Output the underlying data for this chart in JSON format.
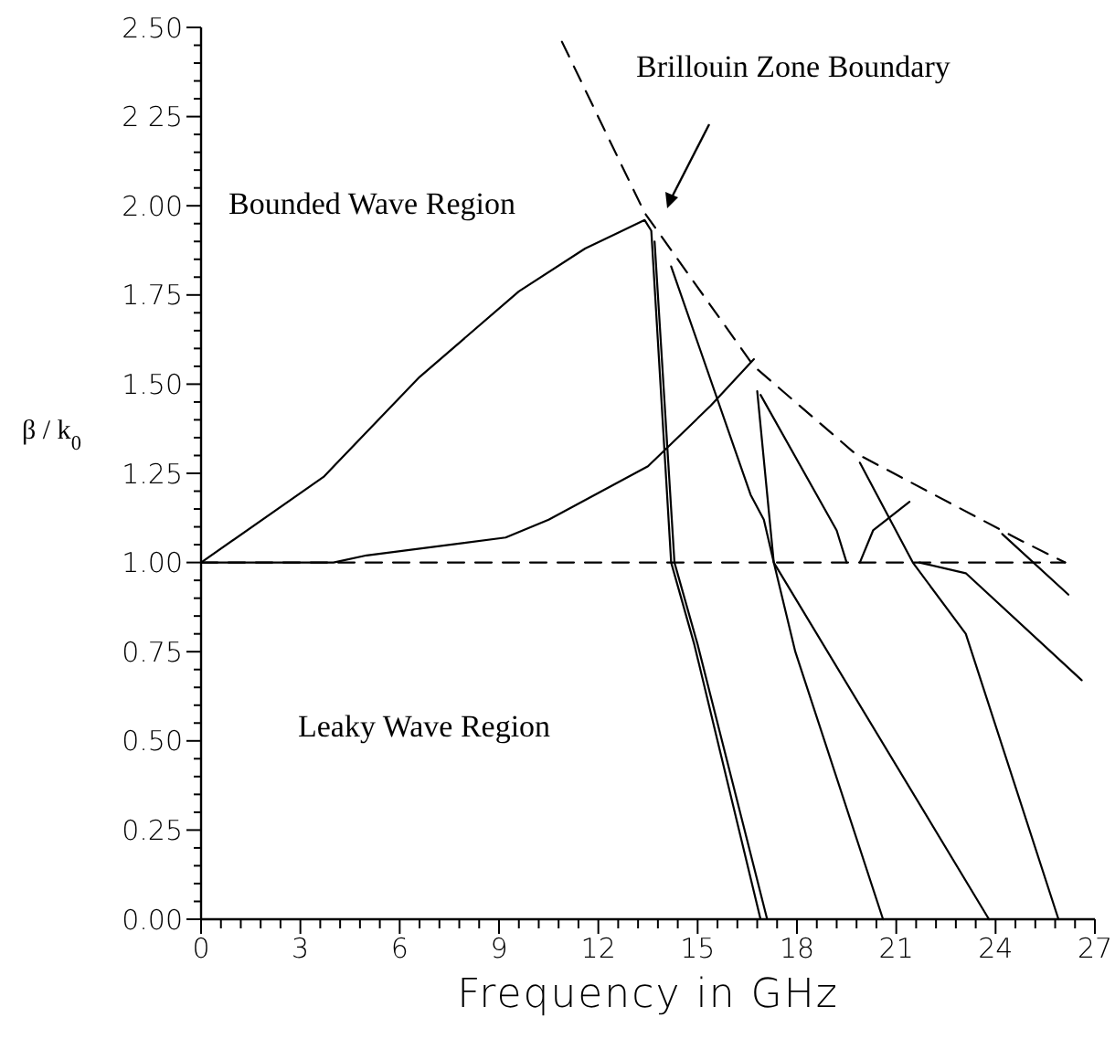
{
  "chart_data": {
    "type": "line",
    "xlabel": "Frequency in GHz",
    "ylabel": "β / k$_{0}$",
    "xlim": [
      0,
      27
    ],
    "ylim": [
      0,
      2.5
    ],
    "xticks": [
      0,
      {
        "value": 0.6,
        "label": null
      },
      {
        "value": 1.2,
        "label": null
      },
      {
        "value": 1.8,
        "label": null
      },
      {
        "value": 2.4,
        "label": null
      },
      3,
      {
        "value": 3.6,
        "label": null
      },
      {
        "value": 4.2,
        "label": null
      },
      {
        "value": 4.8,
        "label": null
      },
      {
        "value": 5.4,
        "label": null
      },
      6,
      {
        "value": 6.6,
        "label": null
      },
      {
        "value": 7.2,
        "label": null
      },
      {
        "value": 7.8,
        "label": null
      },
      {
        "value": 8.4,
        "label": null
      },
      9,
      {
        "value": 9.6,
        "label": null
      },
      {
        "value": 10.2,
        "label": null
      },
      {
        "value": 10.8,
        "label": null
      },
      {
        "value": 11.4,
        "label": null
      },
      12,
      {
        "value": 12.6,
        "label": null
      },
      {
        "value": 13.2,
        "label": null
      },
      {
        "value": 13.8,
        "label": null
      },
      {
        "value": 14.4,
        "label": null
      },
      15,
      {
        "value": 15.6,
        "label": null
      },
      {
        "value": 16.2,
        "label": null
      },
      {
        "value": 16.8,
        "label": null
      },
      {
        "value": 17.4,
        "label": null
      },
      18,
      {
        "value": 18.6,
        "label": null
      },
      {
        "value": 19.2,
        "label": null
      },
      {
        "value": 19.8,
        "label": null
      },
      {
        "value": 20.4,
        "label": null
      },
      21,
      {
        "value": 21.6,
        "label": null
      },
      {
        "value": 22.2,
        "label": null
      },
      {
        "value": 22.8,
        "label": null
      },
      {
        "value": 23.4,
        "label": null
      },
      24,
      {
        "value": 24.6,
        "label": null
      },
      {
        "value": 25.2,
        "label": null
      },
      {
        "value": 25.8,
        "label": null
      },
      {
        "value": 26.4,
        "label": null
      },
      27
    ],
    "yticks": [
      {
        "value": 0,
        "label": "0.00"
      },
      {
        "value": 0.05,
        "label": null
      },
      {
        "value": 0.1,
        "label": null
      },
      {
        "value": 0.15,
        "label": null
      },
      {
        "value": 0.2,
        "label": null
      },
      0.25,
      {
        "value": 0.3,
        "label": null
      },
      {
        "value": 0.35,
        "label": null
      },
      {
        "value": 0.4,
        "label": null
      },
      {
        "value": 0.45,
        "label": null
      },
      {
        "value": 0.5,
        "label": "0.50"
      },
      {
        "value": 0.55,
        "label": null
      },
      {
        "value": 0.6,
        "label": null
      },
      {
        "value": 0.65,
        "label": null
      },
      {
        "value": 0.7,
        "label": null
      },
      0.75,
      {
        "value": 0.8,
        "label": null
      },
      {
        "value": 0.85,
        "label": null
      },
      {
        "value": 0.9,
        "label": null
      },
      {
        "value": 0.95,
        "label": null
      },
      {
        "value": 1,
        "label": "1.00"
      },
      {
        "value": 1.05,
        "label": null
      },
      {
        "value": 1.1,
        "label": null
      },
      {
        "value": 1.15,
        "label": null
      },
      {
        "value": 1.2,
        "label": null
      },
      1.25,
      {
        "value": 1.3,
        "label": null
      },
      {
        "value": 1.35,
        "label": null
      },
      {
        "value": 1.4,
        "label": null
      },
      {
        "value": 1.45,
        "label": null
      },
      {
        "value": 1.5,
        "label": "1.50"
      },
      {
        "value": 1.55,
        "label": null
      },
      {
        "value": 1.6,
        "label": null
      },
      {
        "value": 1.65,
        "label": null
      },
      {
        "value": 1.7,
        "label": null
      },
      1.75,
      {
        "value": 1.8,
        "label": null
      },
      {
        "value": 1.85,
        "label": null
      },
      {
        "value": 1.9,
        "label": null
      },
      {
        "value": 1.95,
        "label": null
      },
      {
        "value": 2,
        "label": "2.00"
      },
      {
        "value": 2.05,
        "label": null
      },
      {
        "value": 2.1,
        "label": null
      },
      {
        "value": 2.15,
        "label": null
      },
      {
        "value": 2.2,
        "label": null
      },
      {
        "value": 2.25,
        "label": "2 25"
      },
      {
        "value": 2.3,
        "label": null
      },
      {
        "value": 2.35,
        "label": null
      },
      {
        "value": 2.4,
        "label": null
      },
      {
        "value": 2.45,
        "label": null
      },
      {
        "value": 2.5,
        "label": "2.50"
      }
    ],
    "grid": false,
    "marker": "none",
    "line_style": "solid",
    "series": [
      {
        "color": "#000000",
        "x": [
          0,
          3.7,
          6.6,
          9.6,
          11.6,
          13.4,
          13.6,
          14.2,
          14.9,
          16.9
        ],
        "values": [
          1.0,
          1.24,
          1.52,
          1.76,
          1.88,
          1.96,
          1.93,
          1.0,
          0.77,
          0
        ]
      },
      {
        "color": "#000000",
        "x": [
          13.7,
          14.3,
          15.0,
          17.1
        ],
        "values": [
          1.9,
          1.0,
          0.77,
          0
        ]
      },
      {
        "color": "#000000",
        "x": [
          0,
          4,
          5,
          9.2,
          10.5,
          13.5,
          15.4,
          16.7
        ],
        "values": [
          1.0,
          1.0,
          1.02,
          1.07,
          1.12,
          1.27,
          1.44,
          1.57
        ]
      },
      {
        "color": "#000000",
        "x": [
          14.2,
          16.6,
          17.0,
          17.3,
          23.8
        ],
        "values": [
          1.83,
          1.19,
          1.12,
          1.0,
          0
        ]
      },
      {
        "color": "#000000",
        "x": [
          16.8,
          17.3,
          17.95,
          20.6
        ],
        "values": [
          1.48,
          1.0,
          0.75,
          0
        ]
      },
      {
        "color": "#000000",
        "x": [
          16.9,
          19.2,
          19.5
        ],
        "values": [
          1.47,
          1.09,
          1.0
        ]
      },
      {
        "color": "#000000",
        "x": [
          19.9,
          20.3,
          21.4
        ],
        "values": [
          1.0,
          1.09,
          1.17
        ]
      },
      {
        "color": "#000000",
        "x": [
          19.9,
          21.5,
          23.1,
          25.9
        ],
        "values": [
          1.28,
          1.0,
          0.8,
          0
        ]
      },
      {
        "color": "#000000",
        "x": [
          21.7,
          23.1,
          26.6
        ],
        "values": [
          1.0,
          0.97,
          0.67
        ]
      },
      {
        "color": "#000000",
        "x": [
          24.2,
          26.2
        ],
        "values": [
          1.08,
          0.91
        ]
      },
      {
        "color": "#000000",
        "line_style": "dashed",
        "x": [
          10.9,
          13.4,
          16.7,
          19.7,
          24.8,
          26.1
        ],
        "values": [
          2.46,
          1.98,
          1.55,
          1.31,
          1.06,
          1.0
        ]
      },
      {
        "color": "#000000",
        "line_style": "dashed",
        "x": [
          0,
          26.1
        ],
        "values": [
          1.0,
          1.0
        ]
      }
    ],
    "annotations": [
      "Bounded Wave Region",
      "Brillouin Zone Boundary",
      "Leaky Wave Region"
    ]
  }
}
